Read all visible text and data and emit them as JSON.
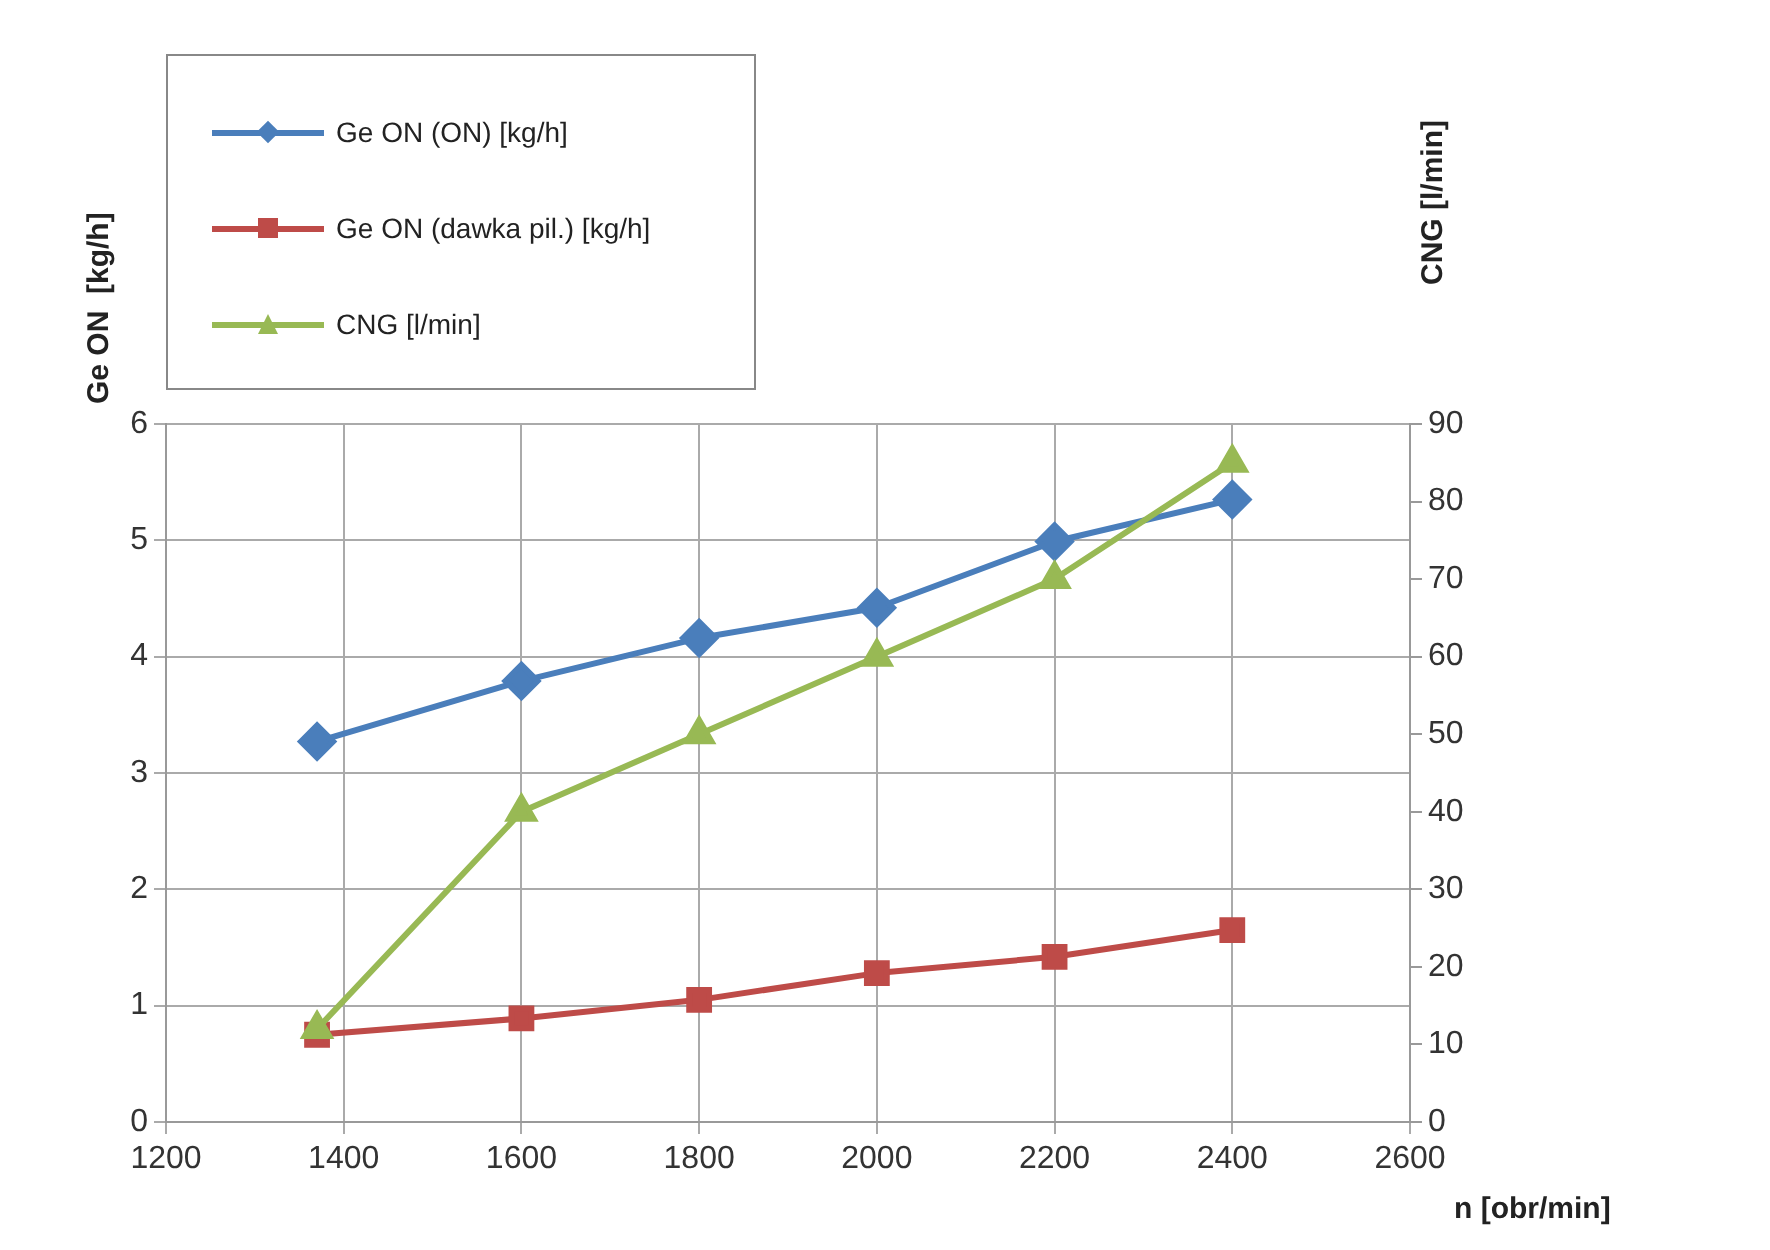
{
  "chart_data": {
    "type": "line",
    "xlabel": "n [obr/min]",
    "ylabel": "Ge ON  [kg/h]",
    "y2label": "CNG [l/min]",
    "x": [
      1370,
      1600,
      1800,
      2000,
      2200,
      2400
    ],
    "series": [
      {
        "name": "Ge ON (ON) [kg/h]",
        "color": "#4a7ebb",
        "marker": "diamond",
        "values": [
          3.27,
          3.79,
          4.16,
          4.42,
          4.99,
          5.35
        ]
      },
      {
        "name": "Ge ON (dawka pil.) [kg/h]",
        "color": "#be4b48",
        "marker": "square",
        "values": [
          0.75,
          0.89,
          1.05,
          1.28,
          1.42,
          1.65
        ]
      },
      {
        "name": "CNG [l/min]",
        "color": "#98b954",
        "marker": "triangle",
        "axis": "y2",
        "values": [
          12,
          40,
          50,
          60,
          70,
          85
        ]
      }
    ],
    "xlim": [
      1200,
      2600
    ],
    "xticks": [
      1200,
      1400,
      1600,
      1800,
      2000,
      2200,
      2400,
      2600
    ],
    "ylim": [
      0,
      6
    ],
    "yticks": [
      0,
      1,
      2,
      3,
      4,
      5,
      6
    ],
    "y2lim": [
      0,
      90
    ],
    "y2ticks": [
      0,
      10,
      20,
      30,
      40,
      50,
      60,
      70,
      80,
      90
    ],
    "grid": true,
    "legend": "top left",
    "line_style": "solid"
  }
}
